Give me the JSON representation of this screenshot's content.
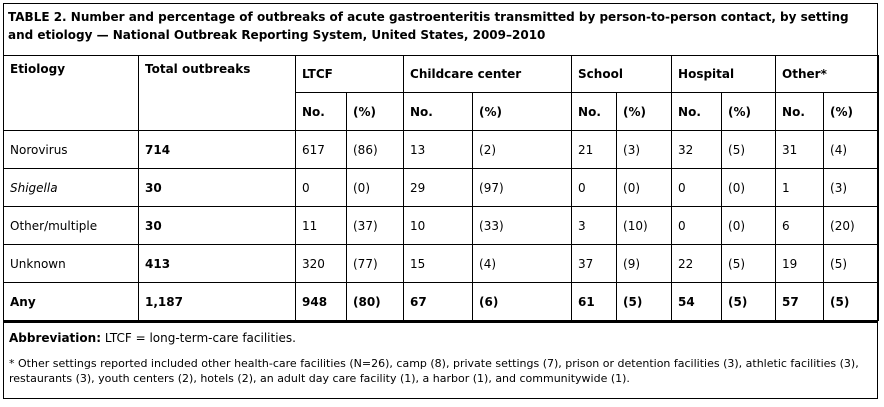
{
  "caption": "TABLE 2. Number and percentage of outbreaks of acute gastroenteritis transmitted by person-to-person contact, by setting and etiology — National Outbreak Reporting System, United States, 2009–2010",
  "header": {
    "etiology": "Etiology",
    "total": "Total outbreaks",
    "groups": [
      "LTCF",
      "Childcare center",
      "School",
      "Hospital",
      "Other*"
    ],
    "no_label": "No.",
    "pct_label": "(%)"
  },
  "rows": [
    {
      "etiology": "Norovirus",
      "total": "714",
      "cells": [
        "617",
        "(86)",
        "13",
        "(2)",
        "21",
        "(3)",
        "32",
        "(5)",
        "31",
        "(4)"
      ]
    },
    {
      "etiology": "Shigella",
      "total": "30",
      "cells": [
        "0",
        "(0)",
        "29",
        "(97)",
        "0",
        "(0)",
        "0",
        "(0)",
        "1",
        "(3)"
      ]
    },
    {
      "etiology": "Other/multiple",
      "total": "30",
      "cells": [
        "11",
        "(37)",
        "10",
        "(33)",
        "3",
        "(10)",
        "0",
        "(0)",
        "6",
        "(20)"
      ]
    },
    {
      "etiology": "Unknown",
      "total": "413",
      "cells": [
        "320",
        "(77)",
        "15",
        "(4)",
        "37",
        "(9)",
        "22",
        "(5)",
        "19",
        "(5)"
      ]
    },
    {
      "etiology": "Any",
      "total": "1,187",
      "cells": [
        "948",
        "(80)",
        "67",
        "(6)",
        "61",
        "(5)",
        "54",
        "(5)",
        "57",
        "(5)"
      ]
    }
  ],
  "notes": {
    "abbrev_label": "Abbreviation:",
    "abbrev_text": "LTCF = long-term-care facilities.",
    "footnote": "* Other settings reported included other health-care facilities (N=26), camp (8), private settings (7), prison or detention facilities (3), athletic facilities (3), restaurants (3), youth centers (2), hotels (2), an adult day care facility (1), a harbor (1), and communitywide (1)."
  }
}
